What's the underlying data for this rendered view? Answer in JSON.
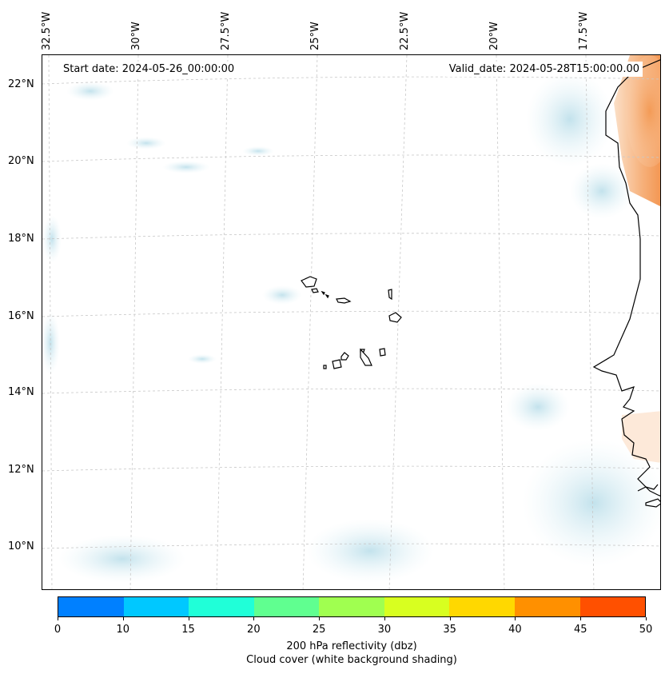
{
  "map": {
    "start_date": "Start date: 2024-05-26_00:00:00",
    "valid_date": "Valid_date: 2024-05-28T15:00:00.00",
    "lon_labels": [
      "32.5°W",
      "30°W",
      "27.5°W",
      "25°W",
      "22.5°W",
      "20°W",
      "17.5°W"
    ],
    "lat_labels": [
      "22°N",
      "20°N",
      "18°N",
      "16°N",
      "14°N",
      "12°N",
      "10°N"
    ],
    "colors": {
      "cloud": "#cfe8f0",
      "land_reflect": "#f4a060",
      "coast": "#000000",
      "grid": "#c8c8c8"
    }
  },
  "colorbar": {
    "ticks": [
      "0",
      "10",
      "15",
      "20",
      "25",
      "30",
      "35",
      "40",
      "45",
      "50"
    ],
    "colors": [
      "#0080ff",
      "#00c8ff",
      "#20ffd8",
      "#60ff90",
      "#a0ff50",
      "#d8ff20",
      "#ffd800",
      "#ff9000",
      "#ff5000"
    ],
    "title_line1": "200 hPa reflectivity (dbz)",
    "title_line2": "Cloud cover (white background shading)"
  }
}
